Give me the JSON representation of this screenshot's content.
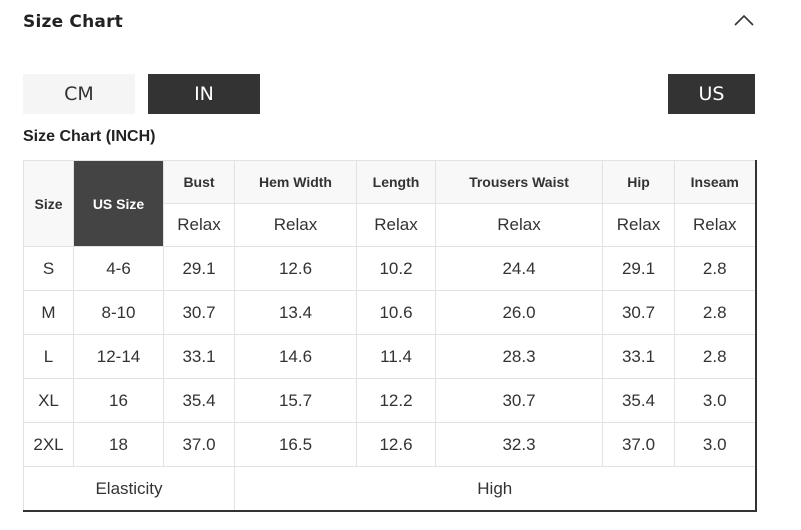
{
  "header": {
    "title": "Size Chart",
    "collapse_icon": "chevron-up-icon"
  },
  "unit_buttons": [
    {
      "label": "CM",
      "selected": false
    },
    {
      "label": "IN",
      "selected": true
    }
  ],
  "region_button": {
    "label": "US",
    "selected": true
  },
  "chart_title": "Size Chart (INCH)",
  "colors": {
    "selected_bg": "#333333",
    "us_size_header_bg": "#444444"
  },
  "table": {
    "size_header": "Size",
    "us_size_header": "US Size",
    "columns": [
      "Bust",
      "Hem Width",
      "Length",
      "Trousers Waist",
      "Hip",
      "Inseam"
    ],
    "fit": [
      "Relax",
      "Relax",
      "Relax",
      "Relax",
      "Relax",
      "Relax"
    ],
    "rows": [
      {
        "size": "S",
        "us": "4-6",
        "values": [
          "29.1",
          "12.6",
          "10.2",
          "24.4",
          "29.1",
          "2.8"
        ]
      },
      {
        "size": "M",
        "us": "8-10",
        "values": [
          "30.7",
          "13.4",
          "10.6",
          "26.0",
          "30.7",
          "2.8"
        ]
      },
      {
        "size": "L",
        "us": "12-14",
        "values": [
          "33.1",
          "14.6",
          "11.4",
          "28.3",
          "33.1",
          "2.8"
        ]
      },
      {
        "size": "XL",
        "us": "16",
        "values": [
          "35.4",
          "15.7",
          "12.2",
          "30.7",
          "35.4",
          "3.0"
        ]
      },
      {
        "size": "2XL",
        "us": "18",
        "values": [
          "37.0",
          "16.5",
          "12.6",
          "32.3",
          "37.0",
          "3.0"
        ]
      }
    ],
    "footer": {
      "label": "Elasticity",
      "value": "High"
    }
  }
}
